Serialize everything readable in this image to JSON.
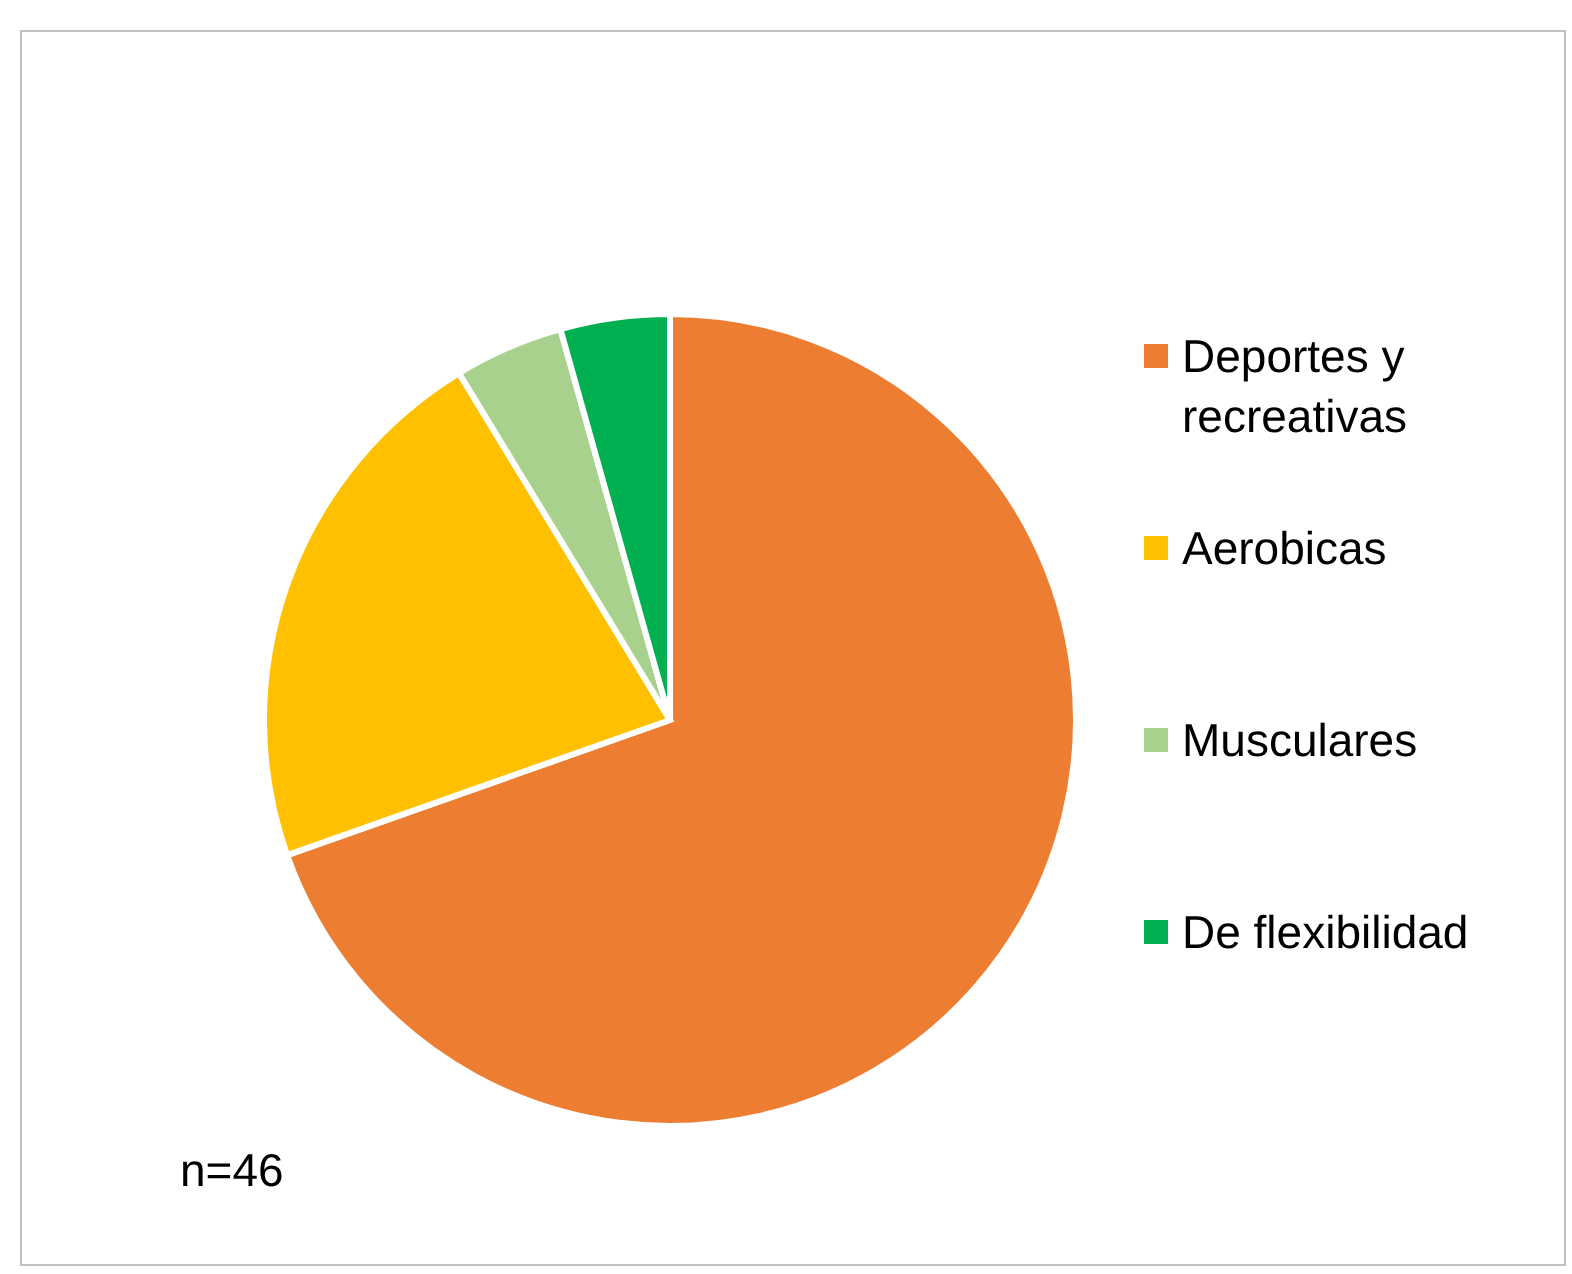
{
  "chart_data": {
    "type": "pie",
    "categories": [
      "Deportes y recreativas",
      "Aerobicas",
      "Musculares",
      "De flexibilidad"
    ],
    "values": [
      69.6,
      21.7,
      4.35,
      4.35
    ],
    "colors": [
      "#ed7d31",
      "#ffc000",
      "#a9d18e",
      "#00b050"
    ],
    "legend": "right",
    "annotations": [
      "n=46"
    ]
  }
}
